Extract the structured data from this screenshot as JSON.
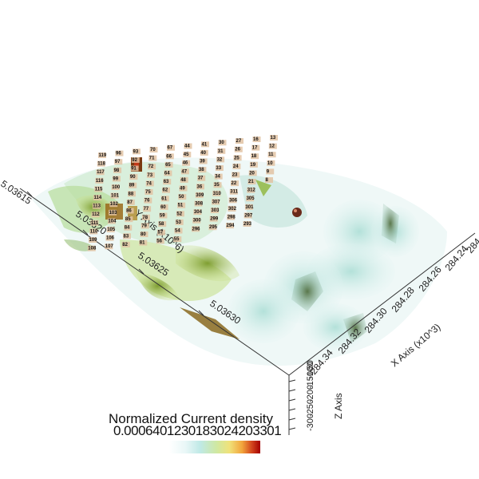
{
  "scene": {
    "colorbar": {
      "title": "Normalized Current density",
      "tick_text": "0.0006401230183024203301",
      "colors": [
        "#ffffff",
        "#bfe9e6",
        "#f0e27a",
        "#d2431d",
        "#a30000"
      ]
    },
    "y_axis": {
      "label": "Y Axis (x10^6)",
      "ticks": [
        "5.03615",
        "5.03620",
        "5.03625",
        "5.03630"
      ]
    },
    "x_axis": {
      "label": "X Axis (x10^3)",
      "ticks": [
        "284.34",
        "284.32",
        "284.30",
        "284.28",
        "284.26",
        "284.24",
        "284"
      ]
    },
    "z_axis": {
      "label": "Z Axis",
      "ticks": [
        "-300",
        "-250",
        "-200",
        "-150",
        "-100",
        "-50"
      ]
    },
    "electrodes": [
      "119",
      "96",
      "93",
      "70",
      "67",
      "44",
      "41",
      "30",
      "27",
      "16",
      "13",
      "118",
      "97",
      "92",
      "71",
      "66",
      "45",
      "40",
      "31",
      "26",
      "17",
      "12",
      "117",
      "98",
      "91",
      "72",
      "65",
      "46",
      "39",
      "32",
      "25",
      "18",
      "11",
      "116",
      "99",
      "90",
      "73",
      "64",
      "47",
      "38",
      "33",
      "24",
      "19",
      "10",
      "115",
      "100",
      "89",
      "74",
      "63",
      "48",
      "37",
      "34",
      "23",
      "20",
      "9",
      "114",
      "101",
      "88",
      "75",
      "62",
      "49",
      "36",
      "35",
      "22",
      "21",
      "8",
      "113",
      "102",
      "87",
      "76",
      "61",
      "50",
      "309",
      "310",
      "311",
      "312",
      "112",
      "103",
      "86",
      "77",
      "60",
      "51",
      "308",
      "307",
      "306",
      "305",
      "111",
      "104",
      "85",
      "78",
      "59",
      "52",
      "304",
      "303",
      "302",
      "301",
      "110",
      "105",
      "84",
      "79",
      "58",
      "53",
      "300",
      "299",
      "298",
      "297",
      "109",
      "106",
      "83",
      "80",
      "57",
      "54",
      "296",
      "295",
      "294",
      "293",
      "108",
      "107",
      "82",
      "81",
      "56",
      "55"
    ]
  }
}
